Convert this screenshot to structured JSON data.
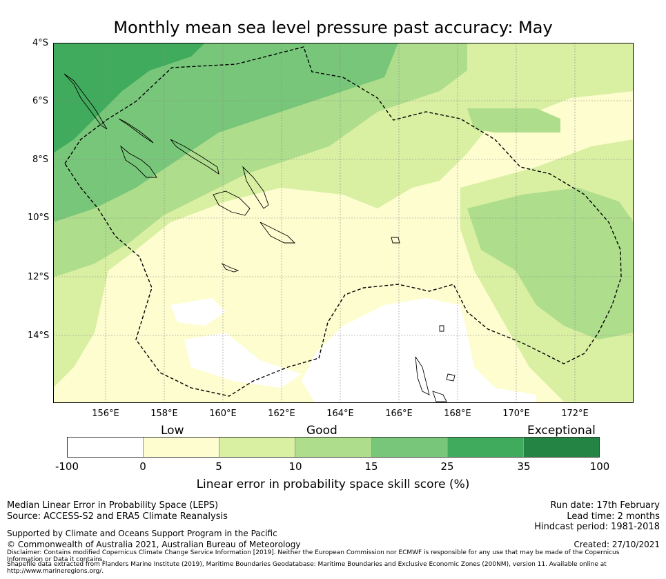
{
  "title": "Monthly mean sea level pressure past accuracy: May",
  "map": {
    "y_axis_labels": [
      "4°S",
      "6°S",
      "8°S",
      "10°S",
      "12°S",
      "14°S"
    ],
    "x_axis_labels": [
      "156°E",
      "158°E",
      "160°E",
      "162°E",
      "164°E",
      "166°E",
      "168°E",
      "170°E",
      "172°E"
    ],
    "lon_range": [
      154.2,
      174.0
    ],
    "lat_range": [
      -16.3,
      -4.0
    ]
  },
  "colorbar": {
    "categories": [
      "Low",
      "Good",
      "Exceptional"
    ],
    "ticks": [
      "-100",
      "0",
      "5",
      "10",
      "15",
      "25",
      "35",
      "100"
    ],
    "colors": [
      "#ffffff",
      "#fdfdd0",
      "#d9efa2",
      "#aedd8c",
      "#78c679",
      "#41ab5d",
      "#238443"
    ],
    "label": "Linear error in probability space skill score (%)"
  },
  "footer": {
    "left_line1": "Median Linear Error in Probability Space (LEPS)",
    "left_line2": "Source: ACCESS-S2 and ERA5 Climate Reanalysis",
    "supported": "Supported by Climate and Oceans Support Program in the Pacific",
    "copyright": "© Commonwealth of Australia 2021, Australian Bureau of Meteorology",
    "run_date": "Run date: 17th February",
    "lead_time": "Lead time: 2 months",
    "hindcast": "Hindcast period: 1981-2018",
    "created": "Created: 27/10/2021",
    "disclaimer": "Disclaimer: Contains modified Copernicus Climate Change Service Information [2019]. Neither the European Commission nor ECMWF is responsible for any use that may be made of the Copernicus Information or Data it contains.",
    "shapefile": "Shapefile data extracted from Flanders Marine Institute (2019), Maritime Boundaries Geodatabase: Maritime Boundaries and Exclusive Economic Zones (200NM), version 11. Available online at http://www.marineregions.org/."
  }
}
